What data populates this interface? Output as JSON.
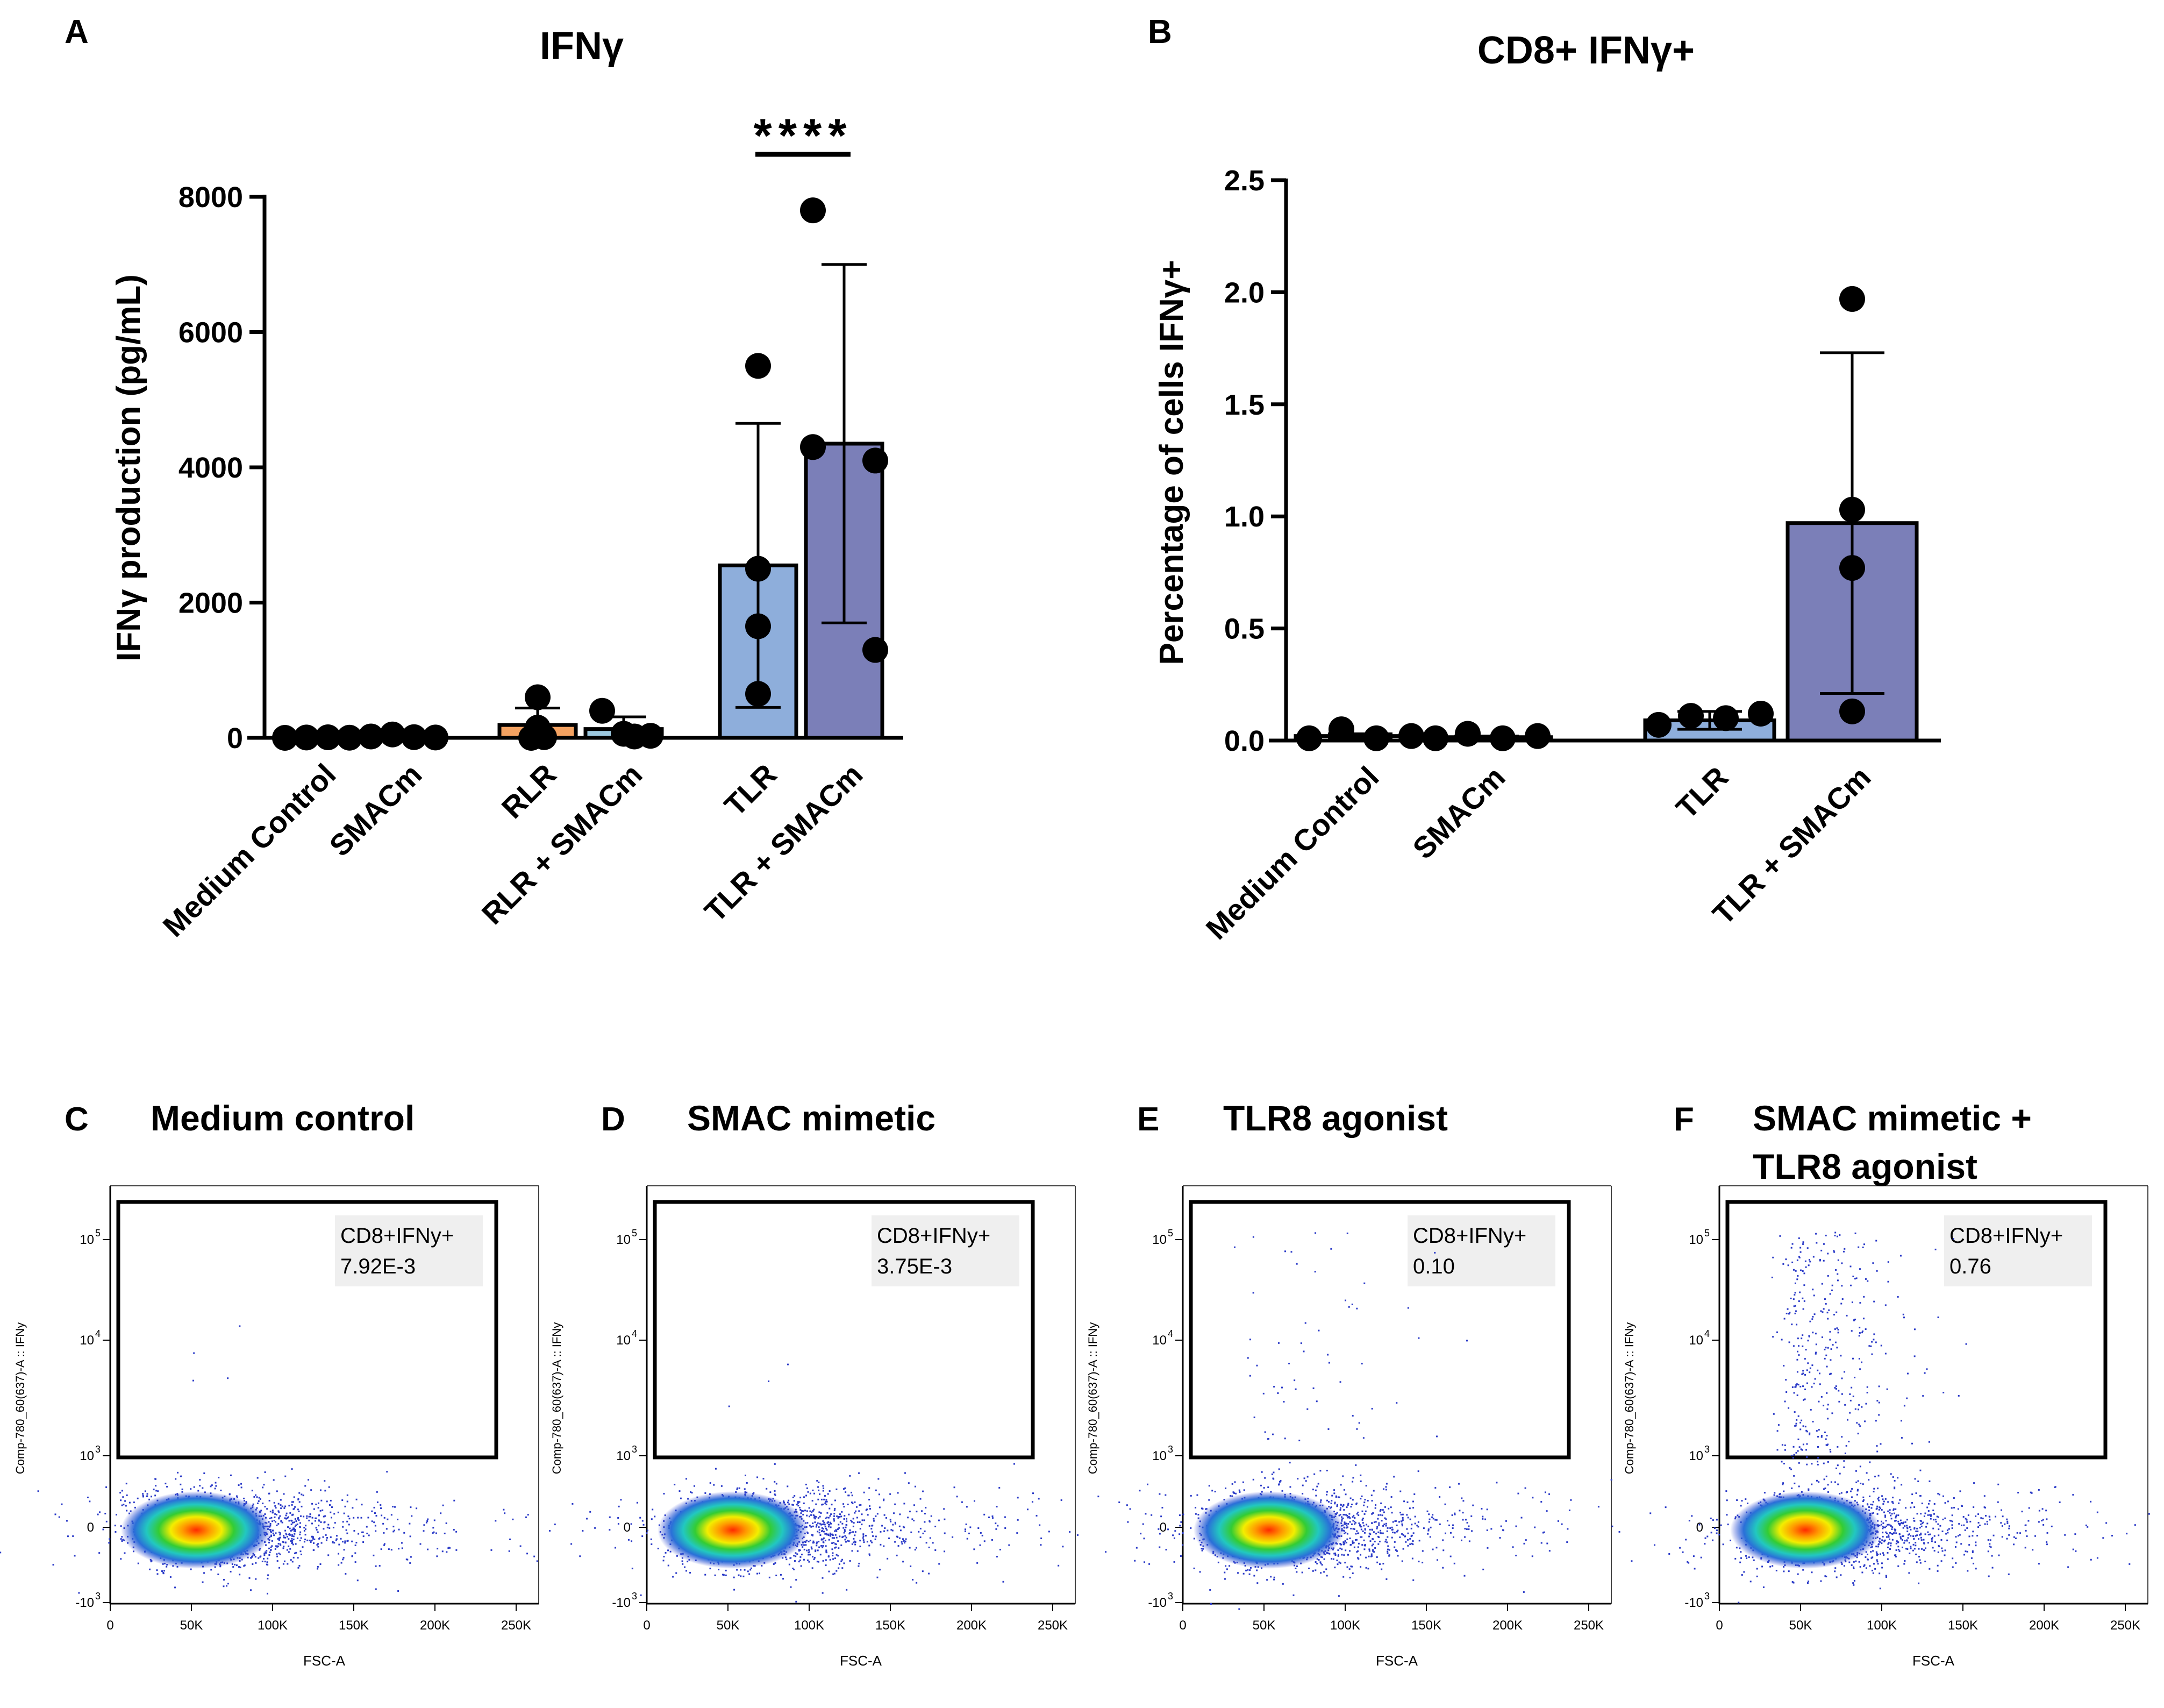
{
  "chart_data": [
    {
      "panel": "A",
      "type": "bar",
      "title": "IFNγ",
      "ylabel": "IFNγ production (pg/mL)",
      "xlabel": "",
      "ylim": [
        0,
        8000
      ],
      "yticks": [
        "0",
        "2000",
        "4000",
        "6000",
        "8000"
      ],
      "categories": [
        "Medium Control",
        "SMACm",
        "RLR",
        "RLR + SMACm",
        "TLR",
        "TLR + SMACm"
      ],
      "values": [
        0,
        0,
        190,
        130,
        2550,
        4350
      ],
      "sd": [
        0,
        0,
        250,
        180,
        2100,
        2650
      ],
      "points": [
        [
          0,
          5,
          8,
          2
        ],
        [
          20,
          50,
          10,
          5
        ],
        [
          600,
          150,
          0,
          10
        ],
        [
          400,
          60,
          20,
          30
        ],
        [
          5500,
          2500,
          1650,
          650
        ],
        [
          7800,
          4300,
          4100,
          1300
        ]
      ],
      "colors": [
        "#ffffff",
        "#ffffff",
        "#f4a261",
        "#9cc9e0",
        "#8eaedb",
        "#7b7fb8"
      ],
      "significance": {
        "label": "****",
        "between": [
          "TLR",
          "TLR + SMACm"
        ]
      }
    },
    {
      "panel": "B",
      "type": "bar",
      "title": "CD8+ IFNγ+",
      "ylabel": "Percentage of cells IFNγ+",
      "xlabel": "",
      "ylim": [
        0,
        2.5
      ],
      "yticks": [
        "0.0",
        "0.5",
        "1.0",
        "1.5",
        "2.0",
        "2.5"
      ],
      "categories": [
        "Medium Control",
        "SMACm",
        "TLR",
        "TLR + SMACm"
      ],
      "values": [
        0.02,
        0.015,
        0.09,
        0.97
      ],
      "sd": [
        0.01,
        0.005,
        0.04,
        0.76
      ],
      "points": [
        [
          0.01,
          0.05,
          0.01,
          0.02
        ],
        [
          0.01,
          0.03,
          0.01,
          0.02
        ],
        [
          0.07,
          0.11,
          0.1,
          0.12
        ],
        [
          1.97,
          1.03,
          0.77,
          0.13
        ]
      ],
      "colors": [
        "#ffffff",
        "#ffffff",
        "#8eaedb",
        "#7b7fb8"
      ]
    },
    {
      "panel": "C",
      "type": "scatter",
      "title": "Medium control",
      "xlabel": "FSC-A",
      "ylabel": "Comp-780_60(637)-A :: IFNy",
      "gate_label": "CD8+IFNy+",
      "gate_value": "7.92E-3",
      "sparse_events": 6
    },
    {
      "panel": "D",
      "type": "scatter",
      "title": "SMAC mimetic",
      "xlabel": "FSC-A",
      "ylabel": "Comp-780_60(637)-A :: IFNy",
      "gate_label": "CD8+IFNy+",
      "gate_value": "3.75E-3",
      "sparse_events": 4
    },
    {
      "panel": "E",
      "type": "scatter",
      "title": "TLR8 agonist",
      "xlabel": "FSC-A",
      "ylabel": "Comp-780_60(637)-A :: IFNy",
      "gate_label": "CD8+IFNy+",
      "gate_value": "0.10",
      "sparse_events": 60
    },
    {
      "panel": "F",
      "type": "scatter",
      "title": "SMAC mimetic + TLR8 agonist",
      "title_lines": [
        "SMAC mimetic +",
        "TLR8 agonist"
      ],
      "xlabel": "FSC-A",
      "ylabel": "Comp-780_60(637)-A :: IFNy",
      "gate_label": "CD8+IFNy+",
      "gate_value": "0.76",
      "sparse_events": 380
    }
  ],
  "flow_axes": {
    "x_ticks": [
      "0",
      "50K",
      "100K",
      "150K",
      "200K",
      "250K"
    ],
    "y_ticks": [
      "10",
      "10",
      "10",
      "0",
      "-10"
    ],
    "y_exponents": [
      "5",
      "4",
      "3",
      "",
      "3"
    ]
  }
}
